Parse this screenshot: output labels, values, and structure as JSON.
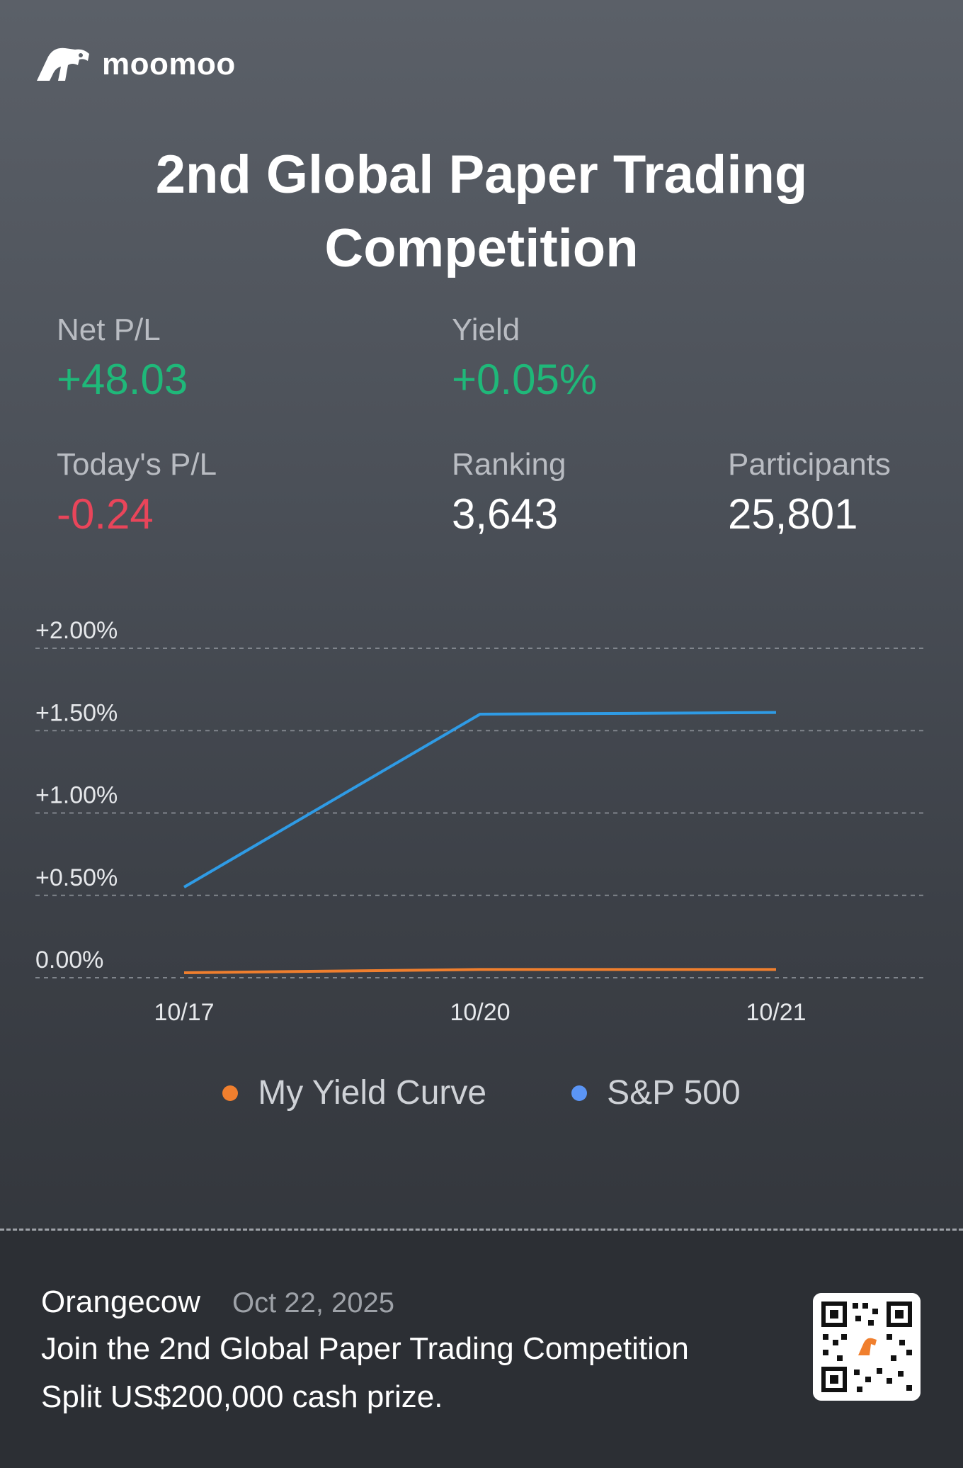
{
  "brand": {
    "name": "moomoo"
  },
  "title": {
    "line1": "2nd Global Paper Trading",
    "line2": "Competition"
  },
  "stats": {
    "net_pl": {
      "label": "Net P/L",
      "value": "+48.03"
    },
    "yield": {
      "label": "Yield",
      "value": "+0.05%"
    },
    "today_pl": {
      "label": "Today's P/L",
      "value": "-0.24"
    },
    "ranking": {
      "label": "Ranking",
      "value": "3,643"
    },
    "participants": {
      "label": "Participants",
      "value": "25,801"
    }
  },
  "colors": {
    "positive": "#1fb879",
    "negative": "#e9455a",
    "my_yield": "#f07f2e",
    "sp500": "#2f9be5"
  },
  "chart_data": {
    "type": "line",
    "x": [
      "10/17",
      "10/20",
      "10/21"
    ],
    "yticks": [
      "+2.00%",
      "+1.50%",
      "+1.00%",
      "+0.50%",
      "0.00%"
    ],
    "ylim": [
      0,
      2
    ],
    "grid": true,
    "legend_placement": "bottom",
    "series": [
      {
        "name": "My Yield Curve",
        "values": [
          0.03,
          0.05,
          0.05
        ],
        "color": "#f07f2e"
      },
      {
        "name": "S&P 500",
        "values": [
          0.55,
          1.6,
          1.61
        ],
        "color": "#2f9be5"
      }
    ]
  },
  "legend": [
    {
      "label": "My Yield Curve",
      "color": "#f07f2e"
    },
    {
      "label": "S&P 500",
      "color": "#5b95f5"
    }
  ],
  "footer": {
    "user": "Orangecow",
    "date": "Oct 22, 2025",
    "line1": "Join the 2nd Global Paper Trading Competition",
    "line2": "Split US$200,000  cash prize."
  }
}
